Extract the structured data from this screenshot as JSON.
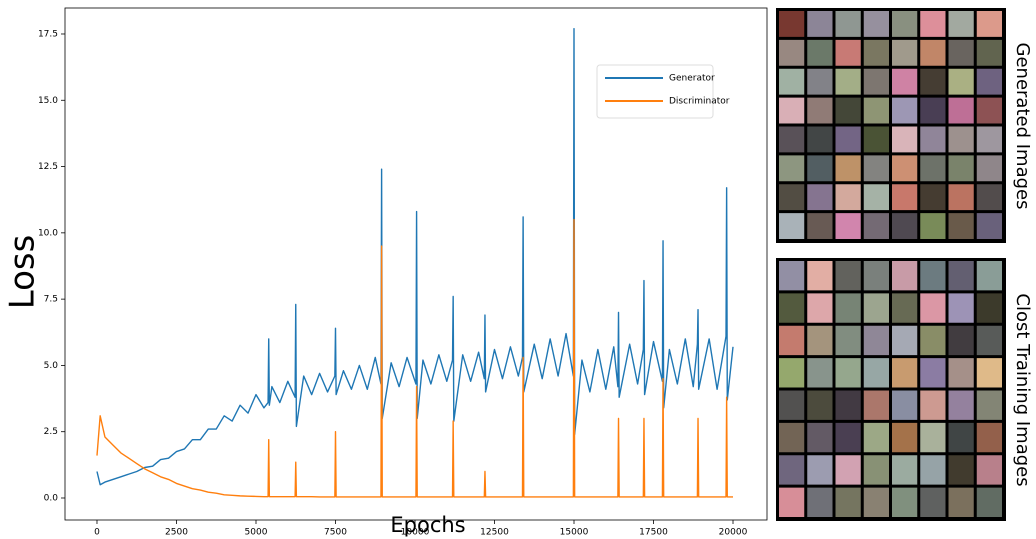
{
  "chart_data": {
    "type": "line",
    "xlabel": "Epochs",
    "ylabel": "Loss",
    "x": [
      0,
      100,
      250,
      500,
      750,
      1000,
      1250,
      1500,
      1750,
      2000,
      2250,
      2500,
      2750,
      3000,
      3250,
      3500,
      3750,
      4000,
      4250,
      4500,
      4750,
      5000,
      5250,
      5380,
      5400,
      5420,
      5500,
      5750,
      6000,
      6230,
      6250,
      6270,
      6500,
      6750,
      7000,
      7250,
      7480,
      7500,
      7520,
      7750,
      8000,
      8250,
      8500,
      8750,
      8930,
      8950,
      8970,
      9250,
      9500,
      9750,
      10030,
      10050,
      10070,
      10250,
      10500,
      10750,
      11000,
      11180,
      11200,
      11220,
      11500,
      11750,
      12000,
      12180,
      12200,
      12220,
      12500,
      12750,
      13000,
      13250,
      13380,
      13400,
      13420,
      13750,
      14000,
      14250,
      14500,
      14750,
      14980,
      15000,
      15020,
      15250,
      15500,
      15750,
      16000,
      16250,
      16380,
      16400,
      16420,
      16750,
      17000,
      17180,
      17200,
      17220,
      17500,
      17780,
      17800,
      17820,
      18000,
      18250,
      18500,
      18750,
      18880,
      18900,
      18920,
      19250,
      19500,
      19780,
      19800,
      19820,
      20000
    ],
    "series": [
      {
        "name": "Generator",
        "color": "#1f77b4",
        "values": [
          1.0,
          0.5,
          0.6,
          0.7,
          0.8,
          0.9,
          1.0,
          1.15,
          1.2,
          1.45,
          1.5,
          1.75,
          1.85,
          2.2,
          2.2,
          2.6,
          2.6,
          3.1,
          2.9,
          3.5,
          3.2,
          3.9,
          3.4,
          3.6,
          6.0,
          3.5,
          4.2,
          3.6,
          4.4,
          3.8,
          7.3,
          2.7,
          4.6,
          3.9,
          4.7,
          4.0,
          4.6,
          6.4,
          3.9,
          4.8,
          4.1,
          5.0,
          4.1,
          5.3,
          4.3,
          12.4,
          3.0,
          5.1,
          4.2,
          5.3,
          4.3,
          10.8,
          3.0,
          5.2,
          4.3,
          5.4,
          4.4,
          5.2,
          7.6,
          2.9,
          5.4,
          4.4,
          5.5,
          4.5,
          6.9,
          4.0,
          5.6,
          4.5,
          5.7,
          4.6,
          5.3,
          10.6,
          4.0,
          5.8,
          4.5,
          6.0,
          4.6,
          6.2,
          4.6,
          17.7,
          2.4,
          5.2,
          4.0,
          5.6,
          4.1,
          5.7,
          4.2,
          7.0,
          3.8,
          5.8,
          4.3,
          5.6,
          8.2,
          3.9,
          5.9,
          4.4,
          9.7,
          3.4,
          5.6,
          4.3,
          6.0,
          4.2,
          5.8,
          7.1,
          4.1,
          6.0,
          4.1,
          6.1,
          11.7,
          3.7,
          5.7
        ]
      },
      {
        "name": "Discriminator",
        "color": "#ff7f0e",
        "values": [
          1.6,
          3.1,
          2.3,
          2.0,
          1.7,
          1.5,
          1.3,
          1.1,
          0.95,
          0.8,
          0.7,
          0.55,
          0.45,
          0.35,
          0.3,
          0.22,
          0.18,
          0.12,
          0.1,
          0.08,
          0.07,
          0.06,
          0.05,
          0.05,
          2.2,
          0.05,
          0.05,
          0.05,
          0.05,
          0.05,
          1.35,
          0.05,
          0.05,
          0.05,
          0.04,
          0.04,
          0.04,
          2.5,
          0.04,
          0.04,
          0.04,
          0.04,
          0.04,
          0.04,
          0.04,
          9.5,
          0.04,
          0.04,
          0.04,
          0.04,
          0.04,
          4.2,
          0.04,
          0.04,
          0.04,
          0.04,
          0.04,
          0.04,
          2.9,
          0.04,
          0.04,
          0.04,
          0.04,
          0.04,
          1.0,
          0.04,
          0.04,
          0.04,
          0.04,
          0.04,
          0.04,
          5.3,
          0.04,
          0.04,
          0.04,
          0.04,
          0.04,
          0.04,
          0.04,
          10.5,
          0.04,
          0.04,
          0.04,
          0.04,
          0.04,
          0.04,
          0.04,
          3.0,
          0.04,
          0.04,
          0.04,
          0.04,
          3.0,
          0.04,
          0.04,
          0.04,
          4.5,
          0.04,
          0.04,
          0.04,
          0.04,
          0.04,
          0.04,
          3.0,
          0.04,
          0.04,
          0.04,
          0.04,
          3.8,
          0.04,
          0.04
        ]
      }
    ],
    "xlim": [
      -1006,
      21069
    ],
    "ylim": [
      -0.83,
      18.48
    ],
    "xticks": [
      0,
      2500,
      5000,
      7500,
      10000,
      12500,
      15000,
      17500,
      20000
    ],
    "yticks": [
      {
        "value": 0,
        "label": "0.0"
      },
      2.5,
      {
        "value": 5,
        "label": "5.0"
      },
      7.5,
      {
        "value": 10,
        "label": "10.0"
      },
      12.5,
      {
        "value": 15,
        "label": "15.0"
      },
      17.5
    ],
    "legend": "upper right",
    "panels": [
      "Generated Images",
      "Clost Training Images"
    ]
  }
}
